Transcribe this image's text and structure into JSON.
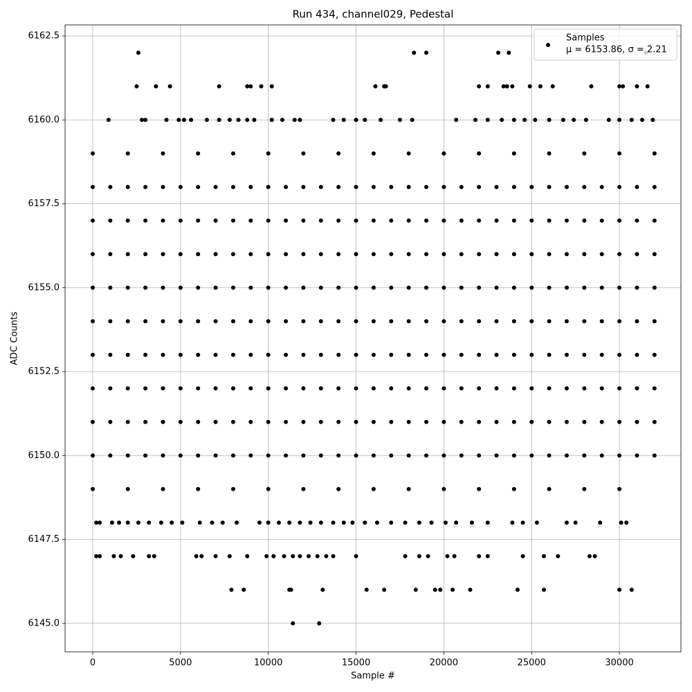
{
  "chart_data": {
    "type": "scatter",
    "title": "Run 434, channel029, Pedestal",
    "x_label": "Sample #",
    "y_label": "ADC Counts",
    "xlim": [
      -1577,
      33505
    ],
    "ylim": [
      6144.15,
      6162.83
    ],
    "xticks": [
      0,
      5000,
      10000,
      15000,
      20000,
      25000,
      30000
    ],
    "yticks": [
      {
        "value": 6145,
        "label": "6145.0"
      },
      {
        "value": 6147.5,
        "label": "6147.5"
      },
      {
        "value": 6150,
        "label": "6150.0"
      },
      {
        "value": 6152.5,
        "label": "6152.5"
      },
      {
        "value": 6155,
        "label": "6155.0"
      },
      {
        "value": 6157.5,
        "label": "6157.5"
      },
      {
        "value": 6160,
        "label": "6160.0"
      },
      {
        "value": 6162.5,
        "label": "6162.5"
      }
    ],
    "grid": true,
    "legend": "upper right",
    "annotation": "μ = 6153.86, σ = 2.21",
    "series": [
      {
        "name": "Samples",
        "color": "#000000",
        "x": [
          2600,
          18300,
          19000,
          23100,
          23700,
          31500,
          2500,
          3600,
          4400,
          7200,
          8800,
          9000,
          9600,
          10200,
          16100,
          16600,
          16700,
          22000,
          22500,
          23400,
          23600,
          23900,
          24900,
          25500,
          26200,
          28400,
          30000,
          30200,
          31000,
          31600,
          900,
          2800,
          3000,
          4200,
          4900,
          5200,
          5600,
          6500,
          7200,
          7800,
          8300,
          8800,
          9200,
          10200,
          10800,
          11500,
          11800,
          13700,
          14300,
          15000,
          15500,
          16400,
          17500,
          18200,
          20700,
          21800,
          22500,
          23300,
          24000,
          24600,
          25200,
          26000,
          26800,
          27400,
          28100,
          29400,
          30000,
          30700,
          31300,
          31900,
          0,
          2000,
          4000,
          6000,
          8000,
          10000,
          12000,
          14000,
          16000,
          18000,
          20000,
          22000,
          24000,
          26000,
          28000,
          30000,
          32000,
          0,
          1000,
          2000,
          3000,
          4000,
          5000,
          6000,
          7000,
          8000,
          9000,
          10000,
          11000,
          12000,
          13000,
          14000,
          15000,
          16000,
          17000,
          18000,
          19000,
          20000,
          21000,
          22000,
          23000,
          24000,
          25000,
          26000,
          27000,
          28000,
          29000,
          30000,
          31000,
          32000,
          0,
          1000,
          2000,
          3000,
          4000,
          5000,
          6000,
          7000,
          8000,
          9000,
          10000,
          11000,
          12000,
          13000,
          14000,
          15000,
          16000,
          17000,
          18000,
          19000,
          20000,
          21000,
          22000,
          23000,
          24000,
          25000,
          26000,
          27000,
          28000,
          29000,
          30000,
          31000,
          32000,
          0,
          1000,
          2000,
          3000,
          4000,
          5000,
          6000,
          7000,
          8000,
          9000,
          10000,
          11000,
          12000,
          13000,
          14000,
          15000,
          16000,
          17000,
          18000,
          19000,
          20000,
          21000,
          22000,
          23000,
          24000,
          25000,
          26000,
          27000,
          28000,
          29000,
          30000,
          31000,
          32000,
          0,
          1000,
          2000,
          3000,
          4000,
          5000,
          6000,
          7000,
          8000,
          9000,
          10000,
          11000,
          12000,
          13000,
          14000,
          15000,
          16000,
          17000,
          18000,
          19000,
          20000,
          21000,
          22000,
          23000,
          24000,
          25000,
          26000,
          27000,
          28000,
          29000,
          30000,
          31000,
          32000,
          0,
          1000,
          2000,
          3000,
          4000,
          5000,
          6000,
          7000,
          8000,
          9000,
          10000,
          11000,
          12000,
          13000,
          14000,
          15000,
          16000,
          17000,
          18000,
          19000,
          20000,
          21000,
          22000,
          23000,
          24000,
          25000,
          26000,
          27000,
          28000,
          29000,
          30000,
          31000,
          32000,
          0,
          1000,
          2000,
          3000,
          4000,
          5000,
          6000,
          7000,
          8000,
          9000,
          10000,
          11000,
          12000,
          13000,
          14000,
          15000,
          16000,
          17000,
          18000,
          19000,
          20000,
          21000,
          22000,
          23000,
          24000,
          25000,
          26000,
          27000,
          28000,
          29000,
          30000,
          31000,
          32000,
          0,
          1000,
          2000,
          3000,
          4000,
          5000,
          6000,
          7000,
          8000,
          9000,
          10000,
          11000,
          12000,
          13000,
          14000,
          15000,
          16000,
          17000,
          18000,
          19000,
          20000,
          21000,
          22000,
          23000,
          24000,
          25000,
          26000,
          27000,
          28000,
          29000,
          30000,
          31000,
          32000,
          0,
          1000,
          2000,
          3000,
          4000,
          5000,
          6000,
          7000,
          8000,
          9000,
          10000,
          11000,
          12000,
          13000,
          14000,
          15000,
          16000,
          17000,
          18000,
          19000,
          20000,
          21000,
          22000,
          23000,
          24000,
          25000,
          26000,
          27000,
          28000,
          29000,
          30000,
          31000,
          32000,
          0,
          1000,
          2000,
          3000,
          4000,
          5000,
          6000,
          7000,
          8000,
          9000,
          10000,
          11000,
          12000,
          13000,
          14000,
          15000,
          16000,
          17000,
          18000,
          19000,
          20000,
          21000,
          22000,
          23000,
          24000,
          25000,
          26000,
          27000,
          28000,
          29000,
          30000,
          31000,
          32000,
          0,
          2000,
          4000,
          6000,
          8000,
          10000,
          12000,
          14000,
          16000,
          18000,
          20000,
          22000,
          24000,
          26000,
          28000,
          30000,
          200,
          400,
          1100,
          1500,
          2000,
          2600,
          3200,
          3900,
          4500,
          5100,
          6100,
          6800,
          7400,
          8200,
          9500,
          10000,
          10600,
          11200,
          11800,
          12400,
          13000,
          13700,
          14300,
          14800,
          15500,
          16200,
          17000,
          17800,
          18600,
          19300,
          20100,
          20700,
          21600,
          22500,
          23900,
          24500,
          25300,
          27000,
          27500,
          28900,
          30100,
          30400,
          200,
          400,
          1200,
          1600,
          2300,
          3200,
          3500,
          5900,
          6200,
          7000,
          7800,
          8800,
          9900,
          10300,
          10900,
          11400,
          11800,
          12300,
          12800,
          13300,
          13700,
          15000,
          17800,
          18600,
          19100,
          20200,
          20600,
          22000,
          22500,
          24500,
          25700,
          26500,
          28300,
          28600,
          7900,
          8600,
          11200,
          11300,
          13100,
          15600,
          16600,
          18400,
          19500,
          19800,
          20500,
          21500,
          24200,
          25700,
          30000,
          30700,
          11400,
          12900
        ],
        "values": [
          6162,
          6162,
          6162,
          6162,
          6162,
          6162,
          6161,
          6161,
          6161,
          6161,
          6161,
          6161,
          6161,
          6161,
          6161,
          6161,
          6161,
          6161,
          6161,
          6161,
          6161,
          6161,
          6161,
          6161,
          6161,
          6161,
          6161,
          6161,
          6161,
          6161,
          6160,
          6160,
          6160,
          6160,
          6160,
          6160,
          6160,
          6160,
          6160,
          6160,
          6160,
          6160,
          6160,
          6160,
          6160,
          6160,
          6160,
          6160,
          6160,
          6160,
          6160,
          6160,
          6160,
          6160,
          6160,
          6160,
          6160,
          6160,
          6160,
          6160,
          6160,
          6160,
          6160,
          6160,
          6160,
          6160,
          6160,
          6160,
          6160,
          6160,
          6159,
          6159,
          6159,
          6159,
          6159,
          6159,
          6159,
          6159,
          6159,
          6159,
          6159,
          6159,
          6159,
          6159,
          6159,
          6159,
          6159,
          6158,
          6158,
          6158,
          6158,
          6158,
          6158,
          6158,
          6158,
          6158,
          6158,
          6158,
          6158,
          6158,
          6158,
          6158,
          6158,
          6158,
          6158,
          6158,
          6158,
          6158,
          6158,
          6158,
          6158,
          6158,
          6158,
          6158,
          6158,
          6158,
          6158,
          6158,
          6158,
          6158,
          6157,
          6157,
          6157,
          6157,
          6157,
          6157,
          6157,
          6157,
          6157,
          6157,
          6157,
          6157,
          6157,
          6157,
          6157,
          6157,
          6157,
          6157,
          6157,
          6157,
          6157,
          6157,
          6157,
          6157,
          6157,
          6157,
          6157,
          6157,
          6157,
          6157,
          6157,
          6157,
          6157,
          6156,
          6156,
          6156,
          6156,
          6156,
          6156,
          6156,
          6156,
          6156,
          6156,
          6156,
          6156,
          6156,
          6156,
          6156,
          6156,
          6156,
          6156,
          6156,
          6156,
          6156,
          6156,
          6156,
          6156,
          6156,
          6156,
          6156,
          6156,
          6156,
          6156,
          6156,
          6156,
          6156,
          6155,
          6155,
          6155,
          6155,
          6155,
          6155,
          6155,
          6155,
          6155,
          6155,
          6155,
          6155,
          6155,
          6155,
          6155,
          6155,
          6155,
          6155,
          6155,
          6155,
          6155,
          6155,
          6155,
          6155,
          6155,
          6155,
          6155,
          6155,
          6155,
          6155,
          6155,
          6155,
          6155,
          6154,
          6154,
          6154,
          6154,
          6154,
          6154,
          6154,
          6154,
          6154,
          6154,
          6154,
          6154,
          6154,
          6154,
          6154,
          6154,
          6154,
          6154,
          6154,
          6154,
          6154,
          6154,
          6154,
          6154,
          6154,
          6154,
          6154,
          6154,
          6154,
          6154,
          6154,
          6154,
          6154,
          6153,
          6153,
          6153,
          6153,
          6153,
          6153,
          6153,
          6153,
          6153,
          6153,
          6153,
          6153,
          6153,
          6153,
          6153,
          6153,
          6153,
          6153,
          6153,
          6153,
          6153,
          6153,
          6153,
          6153,
          6153,
          6153,
          6153,
          6153,
          6153,
          6153,
          6153,
          6153,
          6153,
          6152,
          6152,
          6152,
          6152,
          6152,
          6152,
          6152,
          6152,
          6152,
          6152,
          6152,
          6152,
          6152,
          6152,
          6152,
          6152,
          6152,
          6152,
          6152,
          6152,
          6152,
          6152,
          6152,
          6152,
          6152,
          6152,
          6152,
          6152,
          6152,
          6152,
          6152,
          6152,
          6152,
          6151,
          6151,
          6151,
          6151,
          6151,
          6151,
          6151,
          6151,
          6151,
          6151,
          6151,
          6151,
          6151,
          6151,
          6151,
          6151,
          6151,
          6151,
          6151,
          6151,
          6151,
          6151,
          6151,
          6151,
          6151,
          6151,
          6151,
          6151,
          6151,
          6151,
          6151,
          6151,
          6151,
          6150,
          6150,
          6150,
          6150,
          6150,
          6150,
          6150,
          6150,
          6150,
          6150,
          6150,
          6150,
          6150,
          6150,
          6150,
          6150,
          6150,
          6150,
          6150,
          6150,
          6150,
          6150,
          6150,
          6150,
          6150,
          6150,
          6150,
          6150,
          6150,
          6150,
          6150,
          6150,
          6150,
          6149,
          6149,
          6149,
          6149,
          6149,
          6149,
          6149,
          6149,
          6149,
          6149,
          6149,
          6149,
          6149,
          6149,
          6149,
          6149,
          6148,
          6148,
          6148,
          6148,
          6148,
          6148,
          6148,
          6148,
          6148,
          6148,
          6148,
          6148,
          6148,
          6148,
          6148,
          6148,
          6148,
          6148,
          6148,
          6148,
          6148,
          6148,
          6148,
          6148,
          6148,
          6148,
          6148,
          6148,
          6148,
          6148,
          6148,
          6148,
          6148,
          6148,
          6148,
          6148,
          6148,
          6148,
          6148,
          6148,
          6148,
          6148,
          6147,
          6147,
          6147,
          6147,
          6147,
          6147,
          6147,
          6147,
          6147,
          6147,
          6147,
          6147,
          6147,
          6147,
          6147,
          6147,
          6147,
          6147,
          6147,
          6147,
          6147,
          6147,
          6147,
          6147,
          6147,
          6147,
          6147,
          6147,
          6147,
          6147,
          6147,
          6147,
          6147,
          6147,
          6146,
          6146,
          6146,
          6146,
          6146,
          6146,
          6146,
          6146,
          6146,
          6146,
          6146,
          6146,
          6146,
          6146,
          6146,
          6146,
          6145,
          6145
        ]
      }
    ]
  }
}
